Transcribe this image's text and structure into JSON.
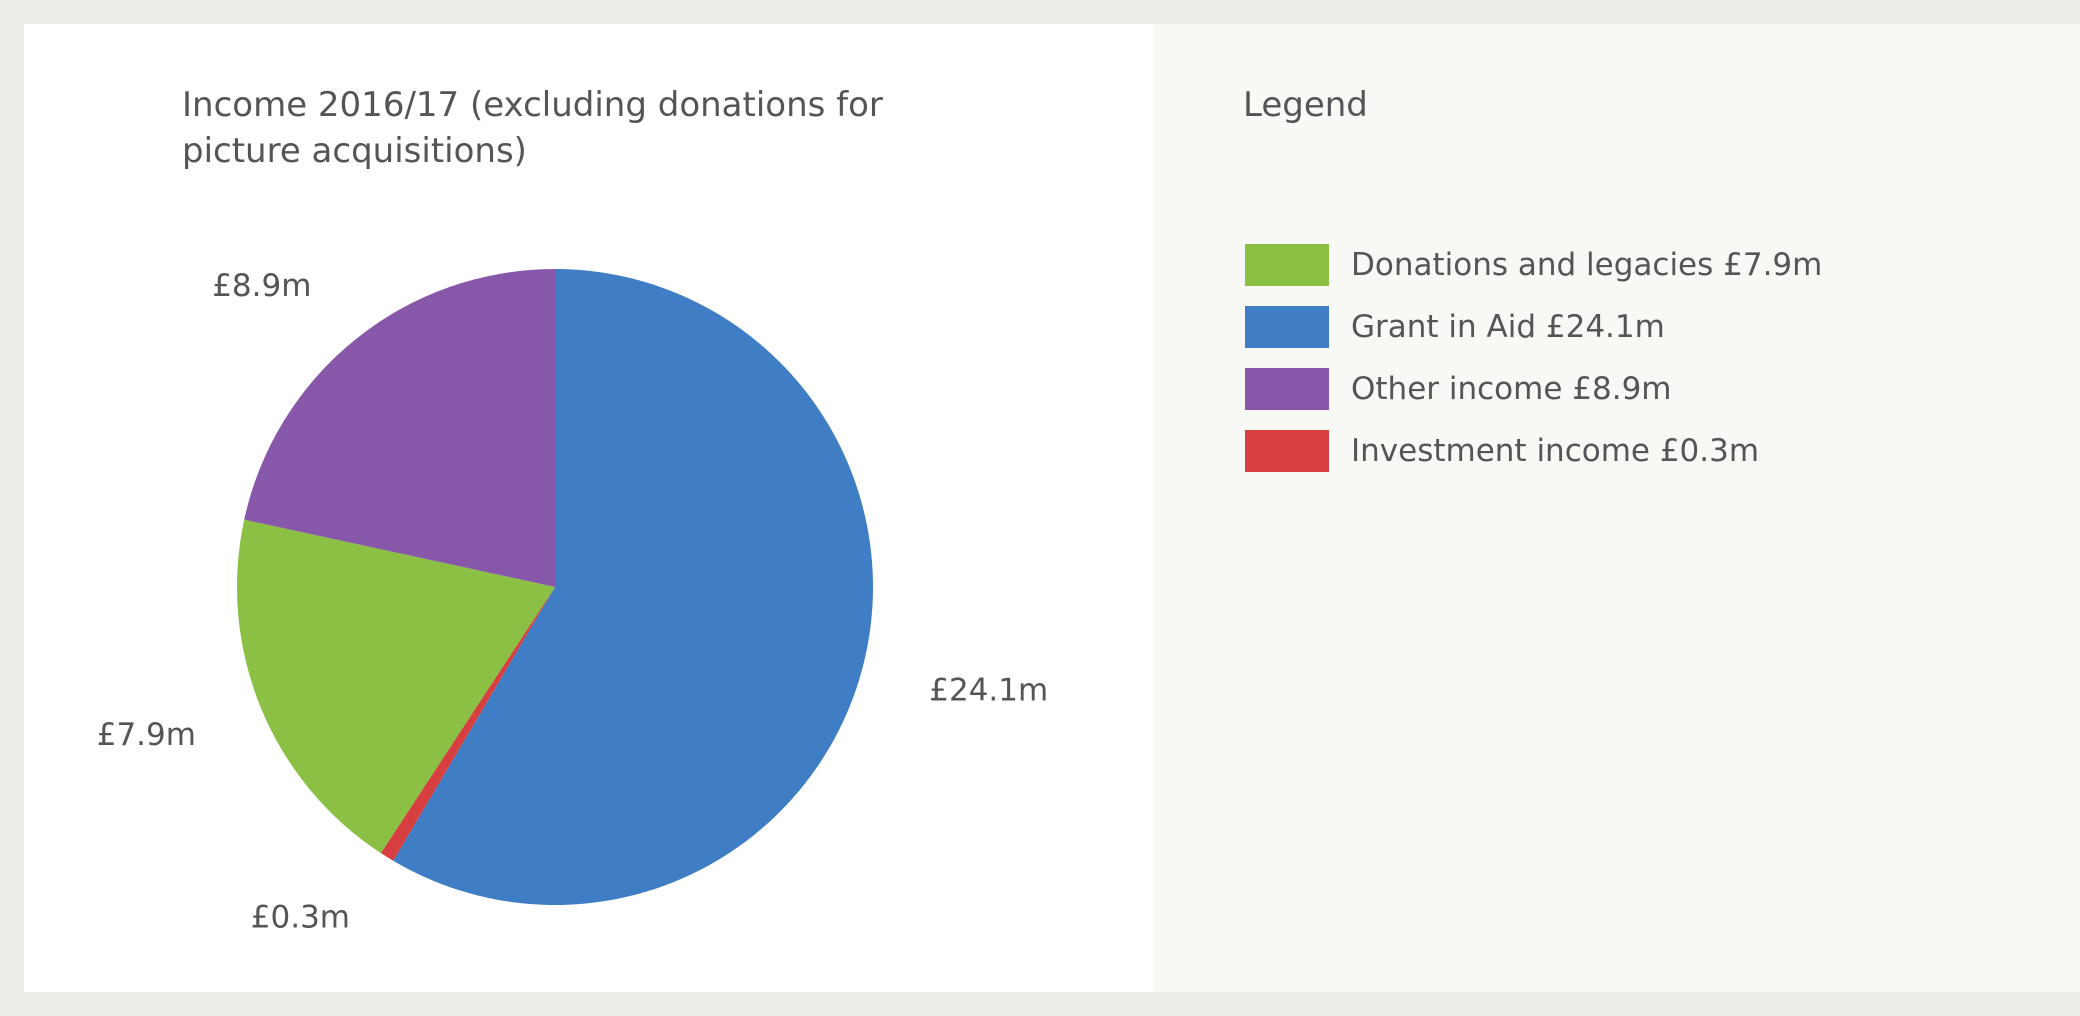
{
  "chart_data": {
    "type": "pie",
    "title": "Income 2016/17 (excluding donations for picture acquisitions)",
    "legend_title": "Legend",
    "legend_position": "right",
    "slices": [
      {
        "name": "Grant in Aid",
        "value": 24.1,
        "label": "£24.1m",
        "legend": "Grant in Aid £24.1m",
        "color": "#3f7ec5"
      },
      {
        "name": "Investment income",
        "value": 0.3,
        "label": "£0.3m",
        "legend": "Investment income £0.3m",
        "color": "#d63e3f"
      },
      {
        "name": "Donations and legacies",
        "value": 7.9,
        "label": "£7.9m",
        "legend": "Donations and legacies £7.9m",
        "color": "#8bc045"
      },
      {
        "name": "Other income",
        "value": 8.9,
        "label": "£8.9m",
        "legend": "Other income £8.9m",
        "color": "#8757aa"
      }
    ],
    "legend_order": [
      "Donations and legacies",
      "Grant in Aid",
      "Other income",
      "Investment income"
    ]
  }
}
